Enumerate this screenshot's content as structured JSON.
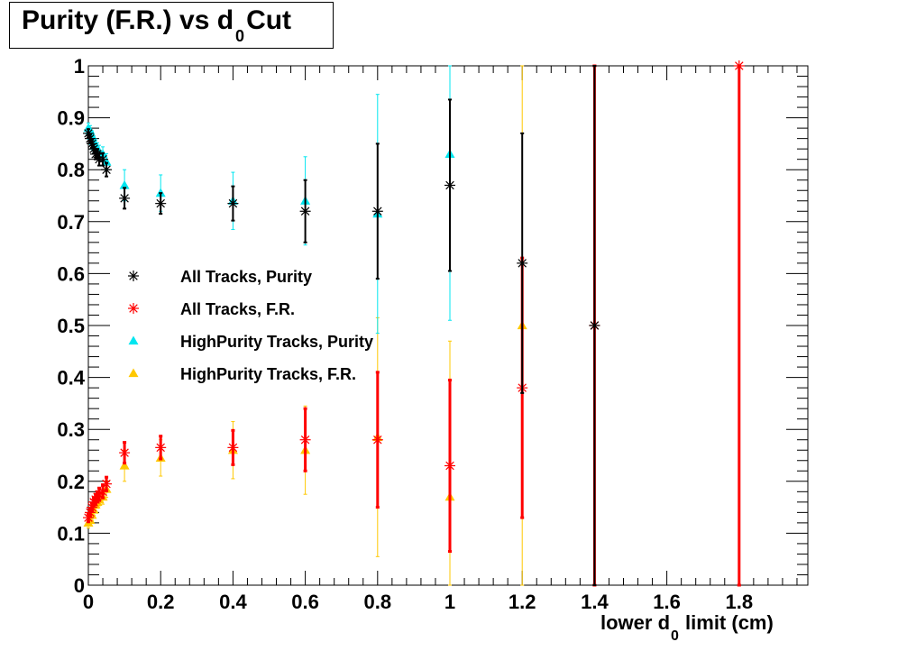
{
  "chart_data": {
    "type": "scatter",
    "title": {
      "pre": "Purity (F.R.) vs ",
      "d": "d",
      "sub": "0",
      "post": "Cut"
    },
    "xlabel": {
      "pre": "lower d",
      "sub": "0",
      "post": " limit (cm)"
    },
    "ylabel": "",
    "xlim": [
      0,
      1.99
    ],
    "ylim": [
      0,
      1.0
    ],
    "x_ticks": [
      "0",
      "0.2",
      "0.4",
      "0.6",
      "0.8",
      "1",
      "1.2",
      "1.4",
      "1.6",
      "1.8"
    ],
    "y_ticks": [
      "0",
      "0.1",
      "0.2",
      "0.3",
      "0.4",
      "0.5",
      "0.6",
      "0.7",
      "0.8",
      "0.9",
      "1"
    ],
    "legend_position": "center-left",
    "series": [
      {
        "name": "All Tracks, Purity",
        "marker": "asterisk",
        "color": "#000000",
        "x": [
          0,
          0.005,
          0.01,
          0.015,
          0.02,
          0.025,
          0.03,
          0.04,
          0.05,
          0.1,
          0.2,
          0.4,
          0.6,
          0.8,
          1.0,
          1.2,
          1.4
        ],
        "y": [
          0.87,
          0.86,
          0.85,
          0.84,
          0.83,
          0.83,
          0.82,
          0.82,
          0.8,
          0.745,
          0.735,
          0.735,
          0.72,
          0.72,
          0.77,
          0.62,
          0.5
        ],
        "err": [
          0.008,
          0.008,
          0.008,
          0.009,
          0.01,
          0.01,
          0.012,
          0.012,
          0.013,
          0.02,
          0.02,
          0.033,
          0.06,
          0.13,
          0.165,
          0.25,
          0.5
        ]
      },
      {
        "name": "All Tracks, F.R.",
        "marker": "asterisk",
        "color": "#ff0000",
        "x": [
          0,
          0.005,
          0.01,
          0.015,
          0.02,
          0.025,
          0.03,
          0.04,
          0.05,
          0.1,
          0.2,
          0.4,
          0.6,
          0.8,
          1.0,
          1.2,
          1.4,
          1.8
        ],
        "y": [
          0.13,
          0.14,
          0.15,
          0.16,
          0.165,
          0.17,
          0.175,
          0.18,
          0.195,
          0.255,
          0.265,
          0.265,
          0.28,
          0.28,
          0.23,
          0.38,
          0.5,
          1.0
        ],
        "err": [
          0.008,
          0.008,
          0.008,
          0.009,
          0.01,
          0.01,
          0.012,
          0.012,
          0.013,
          0.02,
          0.022,
          0.033,
          0.06,
          0.13,
          0.165,
          0.25,
          0.5,
          1.0
        ]
      },
      {
        "name": "HighPurity Tracks, Purity",
        "marker": "triangle",
        "color": "#00e6f0",
        "x": [
          0,
          0.005,
          0.01,
          0.015,
          0.02,
          0.025,
          0.03,
          0.04,
          0.05,
          0.1,
          0.2,
          0.4,
          0.6,
          0.8,
          1.0
        ],
        "y": [
          0.88,
          0.875,
          0.865,
          0.855,
          0.845,
          0.84,
          0.835,
          0.83,
          0.815,
          0.77,
          0.755,
          0.74,
          0.74,
          0.715,
          0.83
        ],
        "err": [
          0.01,
          0.01,
          0.01,
          0.01,
          0.012,
          0.012,
          0.012,
          0.014,
          0.016,
          0.03,
          0.035,
          0.055,
          0.085,
          0.23,
          0.32
        ]
      },
      {
        "name": "HighPurity Tracks, F.R.",
        "marker": "triangle",
        "color": "#ffc800",
        "x": [
          0,
          0.005,
          0.01,
          0.015,
          0.02,
          0.025,
          0.03,
          0.04,
          0.05,
          0.1,
          0.2,
          0.4,
          0.6,
          0.8,
          1.0,
          1.2
        ],
        "y": [
          0.12,
          0.125,
          0.135,
          0.145,
          0.155,
          0.16,
          0.165,
          0.17,
          0.185,
          0.23,
          0.245,
          0.26,
          0.26,
          0.285,
          0.17,
          0.5
        ],
        "err": [
          0.01,
          0.01,
          0.01,
          0.01,
          0.012,
          0.012,
          0.012,
          0.014,
          0.016,
          0.03,
          0.035,
          0.055,
          0.085,
          0.23,
          0.3,
          0.5
        ]
      }
    ]
  }
}
